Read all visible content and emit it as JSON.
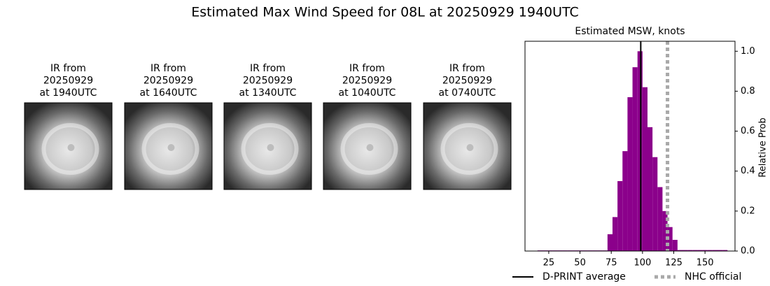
{
  "suptitle": "Estimated Max Wind Speed for 08L at 20250929 1940UTC",
  "images": [
    {
      "lines": [
        "IR from",
        "20250929",
        "at 1940UTC"
      ]
    },
    {
      "lines": [
        "IR from",
        "20250929",
        "at 1640UTC"
      ]
    },
    {
      "lines": [
        "IR from",
        "20250929",
        "at 1340UTC"
      ]
    },
    {
      "lines": [
        "IR from",
        "20250929",
        "at 1040UTC"
      ]
    },
    {
      "lines": [
        "IR from",
        "20250929",
        "at 0740UTC"
      ]
    }
  ],
  "chart_data": {
    "type": "histogram",
    "title": "Estimated MSW, knots",
    "y2label": "Relative Prob",
    "color": "#8b008b",
    "bins": [
      16,
      20,
      24,
      28,
      32,
      36,
      40,
      44,
      48,
      52,
      56,
      60,
      64,
      68,
      72,
      76,
      80,
      84,
      88,
      92,
      96,
      100,
      104,
      108,
      112,
      116,
      120,
      124,
      128,
      132,
      136,
      140,
      144,
      148,
      152,
      156,
      160,
      164,
      168
    ],
    "counts": [
      0.003,
      0.003,
      0.003,
      0.003,
      0.003,
      0.003,
      0.003,
      0.003,
      0.003,
      0.003,
      0.003,
      0.003,
      0.003,
      0.003,
      0.084,
      0.17,
      0.35,
      0.5,
      0.77,
      0.92,
      1.0,
      0.82,
      0.62,
      0.47,
      0.32,
      0.2,
      0.12,
      0.056,
      0.005,
      0.005,
      0.005,
      0.005,
      0.005,
      0.005,
      0.005,
      0.005,
      0.005,
      0.005
    ],
    "axis": "y2",
    "xlim": [
      6,
      174
    ],
    "xticks": [
      25,
      50,
      75,
      100,
      125,
      150
    ],
    "y2lim": [
      0,
      1.05
    ],
    "y2ticks": [
      {
        "value": 0,
        "label": "0.0"
      },
      {
        "value": 0.2,
        "label": "0.2"
      },
      {
        "value": 0.4,
        "label": "0.4"
      },
      {
        "value": 0.6,
        "label": "0.6"
      },
      {
        "value": 0.8,
        "label": "0.8"
      },
      {
        "value": 1.0,
        "label": "1.0"
      }
    ],
    "vlines": [
      {
        "name": "D-PRINT average",
        "value": 98.6,
        "color": "#000000",
        "style": "solid"
      },
      {
        "name": "NHC official",
        "value": 120,
        "color": "#a9a9a9",
        "style": "dotted"
      }
    ]
  }
}
